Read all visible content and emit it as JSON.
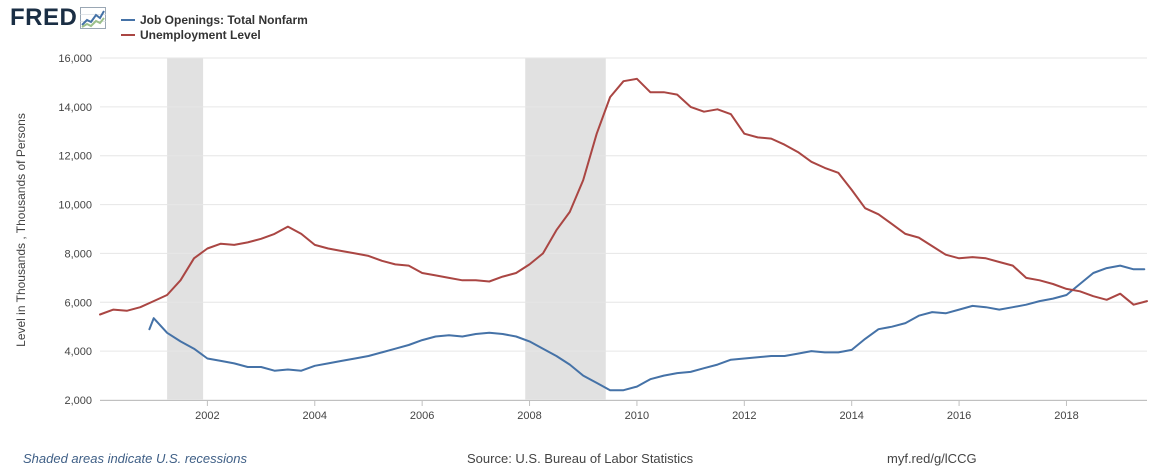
{
  "brand": {
    "logo_text": "FRED",
    "logo_icon": "line-chart-icon"
  },
  "legend": [
    {
      "label": "Job Openings: Total Nonfarm",
      "color": "#4572a7"
    },
    {
      "label": "Unemployment Level",
      "color": "#aa4643"
    }
  ],
  "footer": {
    "recession_note": "Shaded areas indicate U.S. recessions",
    "source": "Source: U.S. Bureau of Labor Statistics",
    "short_url": "myf.red/g/lCCG"
  },
  "chart_data": {
    "type": "line",
    "title": "",
    "xlabel": "",
    "ylabel": "Level in Thousands , Thousands of Persons",
    "xlim": [
      2000.0,
      2019.5
    ],
    "ylim": [
      2000,
      16000
    ],
    "y_ticks": [
      2000,
      4000,
      6000,
      8000,
      10000,
      12000,
      14000,
      16000
    ],
    "y_tick_labels": [
      "2,000",
      "4,000",
      "6,000",
      "8,000",
      "10,000",
      "12,000",
      "14,000",
      "16,000"
    ],
    "x_ticks": [
      2002,
      2004,
      2006,
      2008,
      2010,
      2012,
      2014,
      2016,
      2018
    ],
    "x_tick_labels": [
      "2002",
      "2004",
      "2006",
      "2008",
      "2010",
      "2012",
      "2014",
      "2016",
      "2018"
    ],
    "grid": true,
    "legend_position": "top-left",
    "recessions": [
      [
        2001.25,
        2001.92
      ],
      [
        2007.92,
        2009.42
      ]
    ],
    "series": [
      {
        "name": "Job Openings: Total Nonfarm",
        "color": "#4572a7",
        "x": [
          2000.92,
          2001.0,
          2001.25,
          2001.5,
          2001.75,
          2002.0,
          2002.25,
          2002.5,
          2002.75,
          2003.0,
          2003.25,
          2003.5,
          2003.75,
          2004.0,
          2004.25,
          2004.5,
          2004.75,
          2005.0,
          2005.25,
          2005.5,
          2005.75,
          2006.0,
          2006.25,
          2006.5,
          2006.75,
          2007.0,
          2007.25,
          2007.5,
          2007.75,
          2008.0,
          2008.25,
          2008.5,
          2008.75,
          2009.0,
          2009.25,
          2009.5,
          2009.75,
          2010.0,
          2010.25,
          2010.5,
          2010.75,
          2011.0,
          2011.25,
          2011.5,
          2011.75,
          2012.0,
          2012.25,
          2012.5,
          2012.75,
          2013.0,
          2013.25,
          2013.5,
          2013.75,
          2014.0,
          2014.25,
          2014.5,
          2014.75,
          2015.0,
          2015.25,
          2015.5,
          2015.75,
          2016.0,
          2016.25,
          2016.5,
          2016.75,
          2017.0,
          2017.25,
          2017.5,
          2017.75,
          2018.0,
          2018.25,
          2018.5,
          2018.75,
          2019.0,
          2019.25,
          2019.45
        ],
        "values": [
          4900,
          5350,
          4750,
          4400,
          4100,
          3700,
          3600,
          3500,
          3350,
          3350,
          3200,
          3250,
          3200,
          3400,
          3500,
          3600,
          3700,
          3800,
          3950,
          4100,
          4250,
          4450,
          4600,
          4650,
          4600,
          4700,
          4750,
          4700,
          4600,
          4400,
          4100,
          3800,
          3450,
          3000,
          2700,
          2400,
          2400,
          2550,
          2850,
          3000,
          3100,
          3150,
          3300,
          3450,
          3650,
          3700,
          3750,
          3800,
          3800,
          3900,
          4000,
          3950,
          3950,
          4050,
          4500,
          4900,
          5000,
          5150,
          5450,
          5600,
          5550,
          5700,
          5850,
          5800,
          5700,
          5800,
          5900,
          6050,
          6150,
          6300,
          6750,
          7200,
          7400,
          7500,
          7350,
          7350
        ]
      },
      {
        "name": "Unemployment Level",
        "color": "#aa4643",
        "x": [
          2000.0,
          2000.25,
          2000.5,
          2000.75,
          2001.0,
          2001.25,
          2001.5,
          2001.75,
          2002.0,
          2002.25,
          2002.5,
          2002.75,
          2003.0,
          2003.25,
          2003.5,
          2003.75,
          2004.0,
          2004.25,
          2004.5,
          2004.75,
          2005.0,
          2005.25,
          2005.5,
          2005.75,
          2006.0,
          2006.25,
          2006.5,
          2006.75,
          2007.0,
          2007.25,
          2007.5,
          2007.75,
          2008.0,
          2008.25,
          2008.5,
          2008.75,
          2009.0,
          2009.25,
          2009.5,
          2009.75,
          2010.0,
          2010.25,
          2010.5,
          2010.75,
          2011.0,
          2011.25,
          2011.5,
          2011.75,
          2012.0,
          2012.25,
          2012.5,
          2012.75,
          2013.0,
          2013.25,
          2013.5,
          2013.75,
          2014.0,
          2014.25,
          2014.5,
          2014.75,
          2015.0,
          2015.25,
          2015.5,
          2015.75,
          2016.0,
          2016.25,
          2016.5,
          2016.75,
          2017.0,
          2017.25,
          2017.5,
          2017.75,
          2018.0,
          2018.25,
          2018.5,
          2018.75,
          2019.0,
          2019.25,
          2019.5
        ],
        "values": [
          5500,
          5700,
          5650,
          5800,
          6050,
          6300,
          6900,
          7800,
          8200,
          8400,
          8350,
          8450,
          8600,
          8800,
          9100,
          8800,
          8350,
          8200,
          8100,
          8000,
          7900,
          7700,
          7550,
          7500,
          7200,
          7100,
          7000,
          6900,
          6900,
          6850,
          7050,
          7200,
          7550,
          8000,
          8950,
          9700,
          11000,
          12900,
          14400,
          15050,
          15150,
          14600,
          14600,
          14500,
          14000,
          13800,
          13900,
          13700,
          12900,
          12750,
          12700,
          12450,
          12150,
          11750,
          11500,
          11300,
          10600,
          9850,
          9600,
          9200,
          8800,
          8650,
          8300,
          7950,
          7800,
          7850,
          7800,
          7650,
          7500,
          7000,
          6900,
          6750,
          6550,
          6450,
          6250,
          6100,
          6350,
          5900,
          6050
        ]
      }
    ]
  }
}
